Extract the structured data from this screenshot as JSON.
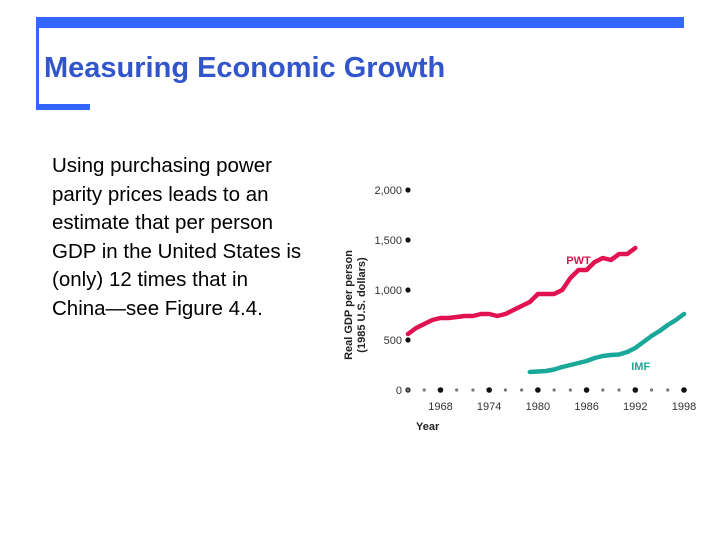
{
  "slide": {
    "title": "Measuring Economic Growth",
    "body": "Using purchasing power parity prices leads to an estimate that per person GDP in the United States is (only) 12 times that in China—see Figure 4.4."
  },
  "colors": {
    "accent": "#3366ff",
    "title": "#3355cc",
    "pwt": "#e0124f",
    "imf": "#1aa89a"
  },
  "chart_data": {
    "type": "line",
    "title": "",
    "xlabel": "Year",
    "ylabel": "Real GDP per person (1985 U.S. dollars)",
    "xlim": [
      1964,
      1998
    ],
    "ylim": [
      0,
      2000
    ],
    "x_ticks": [
      "1968",
      "1974",
      "1980",
      "1986",
      "1992",
      "1998"
    ],
    "y_ticks": [
      "0",
      "500",
      "1,000",
      "1,500",
      "2,000"
    ],
    "series": [
      {
        "name": "PWT",
        "color": "#e0124f",
        "x": [
          1964,
          1965,
          1966,
          1967,
          1968,
          1969,
          1970,
          1971,
          1972,
          1973,
          1974,
          1975,
          1976,
          1977,
          1978,
          1979,
          1980,
          1981,
          1982,
          1983,
          1984,
          1985,
          1986,
          1987,
          1988,
          1989,
          1990,
          1991,
          1992
        ],
        "y": [
          560,
          620,
          660,
          700,
          720,
          720,
          730,
          740,
          740,
          760,
          760,
          740,
          760,
          800,
          840,
          880,
          960,
          960,
          960,
          1000,
          1120,
          1200,
          1200,
          1280,
          1320,
          1300,
          1360,
          1360,
          1420
        ]
      },
      {
        "name": "IMF",
        "color": "#1aa89a",
        "x": [
          1979,
          1980,
          1981,
          1982,
          1983,
          1984,
          1985,
          1986,
          1987,
          1988,
          1989,
          1990,
          1991,
          1992,
          1993,
          1994,
          1995,
          1996,
          1997,
          1998
        ],
        "y": [
          180,
          185,
          190,
          205,
          230,
          250,
          270,
          290,
          320,
          340,
          350,
          355,
          380,
          420,
          480,
          540,
          590,
          650,
          700,
          760
        ]
      }
    ]
  }
}
